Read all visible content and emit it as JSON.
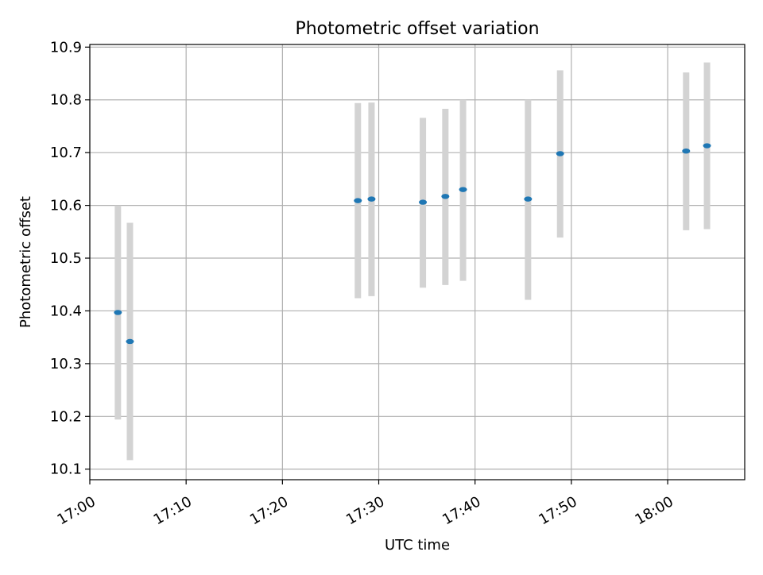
{
  "chart_data": {
    "type": "scatter",
    "title": "Photometric offset variation",
    "xlabel": "UTC time",
    "ylabel": "Photometric offset",
    "x_axis_type": "time",
    "xlim": [
      "17:00",
      "18:08"
    ],
    "ylim": [
      10.08,
      10.905
    ],
    "x_ticks": [
      "17:00",
      "17:10",
      "17:20",
      "17:30",
      "17:40",
      "17:50",
      "18:00"
    ],
    "y_ticks": [
      10.1,
      10.2,
      10.3,
      10.4,
      10.5,
      10.6,
      10.7,
      10.8,
      10.9
    ],
    "y_tick_labels": [
      "10.1",
      "10.2",
      "10.3",
      "10.4",
      "10.5",
      "10.6",
      "10.7",
      "10.8",
      "10.9"
    ],
    "grid": true,
    "legend": false,
    "colors": {
      "point": "#1f77b4",
      "errorbar": "#d3d3d3",
      "grid": "#b0b0b0"
    },
    "points": [
      {
        "x": "17:02:55",
        "y": 10.397,
        "ymin": 10.194,
        "ymax": 10.6
      },
      {
        "x": "17:04:10",
        "y": 10.342,
        "ymin": 10.117,
        "ymax": 10.567
      },
      {
        "x": "17:27:50",
        "y": 10.609,
        "ymin": 10.424,
        "ymax": 10.794
      },
      {
        "x": "17:29:15",
        "y": 10.612,
        "ymin": 10.428,
        "ymax": 10.795
      },
      {
        "x": "17:34:35",
        "y": 10.606,
        "ymin": 10.444,
        "ymax": 10.766
      },
      {
        "x": "17:36:55",
        "y": 10.617,
        "ymin": 10.449,
        "ymax": 10.783
      },
      {
        "x": "17:38:45",
        "y": 10.63,
        "ymin": 10.457,
        "ymax": 10.8
      },
      {
        "x": "17:45:30",
        "y": 10.612,
        "ymin": 10.421,
        "ymax": 10.8
      },
      {
        "x": "17:48:50",
        "y": 10.698,
        "ymin": 10.539,
        "ymax": 10.856
      },
      {
        "x": "18:01:55",
        "y": 10.703,
        "ymin": 10.553,
        "ymax": 10.852
      },
      {
        "x": "18:04:05",
        "y": 10.713,
        "ymin": 10.555,
        "ymax": 10.871
      }
    ]
  }
}
